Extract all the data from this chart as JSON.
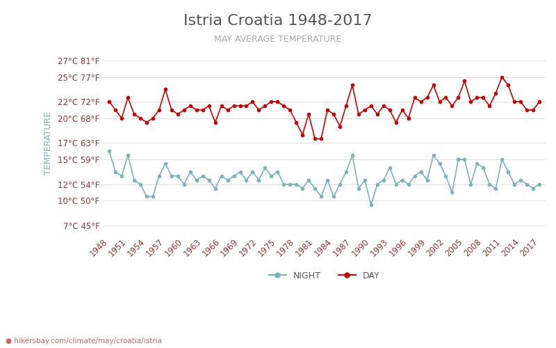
{
  "title": "Istria Croatia 1948-2017",
  "subtitle": "MAY AVERAGE TEMPERATURE",
  "ylabel": "TEMPERATURE",
  "xlabel_url": "hikersbay.com/climate/may/croatia/istria",
  "yticks_c": [
    7,
    10,
    12,
    15,
    17,
    20,
    22,
    25,
    27
  ],
  "yticks_f": [
    45,
    50,
    54,
    59,
    63,
    68,
    72,
    77,
    81
  ],
  "ylim": [
    6,
    28
  ],
  "years": [
    1948,
    1949,
    1950,
    1951,
    1952,
    1953,
    1954,
    1955,
    1956,
    1957,
    1958,
    1959,
    1960,
    1961,
    1962,
    1963,
    1964,
    1965,
    1966,
    1967,
    1968,
    1969,
    1970,
    1971,
    1972,
    1973,
    1974,
    1975,
    1976,
    1977,
    1978,
    1979,
    1980,
    1981,
    1982,
    1983,
    1984,
    1985,
    1986,
    1987,
    1988,
    1989,
    1990,
    1991,
    1992,
    1993,
    1994,
    1995,
    1996,
    1997,
    1998,
    1999,
    2000,
    2001,
    2002,
    2003,
    2004,
    2005,
    2006,
    2007,
    2008,
    2009,
    2010,
    2011,
    2012,
    2013,
    2014,
    2015,
    2016,
    2017
  ],
  "day_temps": [
    22.0,
    21.0,
    20.0,
    22.5,
    20.5,
    20.0,
    19.5,
    20.0,
    21.0,
    23.5,
    21.0,
    20.5,
    21.0,
    21.5,
    21.0,
    21.0,
    21.5,
    19.5,
    21.5,
    21.0,
    21.5,
    21.5,
    21.5,
    22.0,
    21.0,
    21.5,
    22.0,
    22.0,
    21.5,
    21.0,
    19.5,
    18.0,
    20.5,
    17.5,
    17.5,
    21.0,
    20.5,
    19.0,
    21.5,
    24.0,
    20.5,
    21.0,
    21.5,
    20.5,
    21.5,
    21.0,
    19.5,
    21.0,
    20.0,
    22.5,
    22.0,
    22.5,
    24.0,
    22.0,
    22.5,
    21.5,
    22.5,
    24.5,
    22.0,
    22.5,
    22.5,
    21.5,
    23.0,
    25.0,
    24.0,
    22.0,
    22.0,
    21.0,
    21.0,
    22.0
  ],
  "night_temps": [
    16.0,
    13.5,
    13.0,
    15.5,
    12.5,
    12.0,
    10.5,
    10.5,
    13.0,
    14.5,
    13.0,
    13.0,
    12.0,
    13.5,
    12.5,
    13.0,
    12.5,
    11.5,
    13.0,
    12.5,
    13.0,
    13.5,
    12.5,
    13.5,
    12.5,
    14.0,
    13.0,
    13.5,
    12.0,
    12.0,
    12.0,
    11.5,
    12.5,
    11.5,
    10.5,
    12.5,
    10.5,
    12.0,
    13.5,
    15.5,
    11.5,
    12.5,
    9.5,
    12.0,
    12.5,
    14.0,
    12.0,
    12.5,
    12.0,
    13.0,
    13.5,
    12.5,
    15.5,
    14.5,
    13.0,
    11.0,
    15.0,
    15.0,
    12.0,
    14.5,
    14.0,
    12.0,
    11.5,
    15.0,
    13.5,
    12.0,
    12.5,
    12.0,
    11.5,
    12.0
  ],
  "day_color": "#cc0000",
  "night_color": "#7ab3bf",
  "title_color": "#555555",
  "subtitle_color": "#aaaaaa",
  "tick_label_color": "#993333",
  "ylabel_color": "#7ab3bf",
  "grid_color": "#dddddd",
  "legend_day_label": "DAY",
  "legend_night_label": "NIGHT",
  "xtick_years": [
    1948,
    1951,
    1954,
    1957,
    1960,
    1963,
    1966,
    1969,
    1972,
    1975,
    1978,
    1981,
    1984,
    1987,
    1990,
    1993,
    1996,
    1999,
    2002,
    2005,
    2008,
    2011,
    2014,
    2017
  ],
  "bg_color": "#ffffff"
}
